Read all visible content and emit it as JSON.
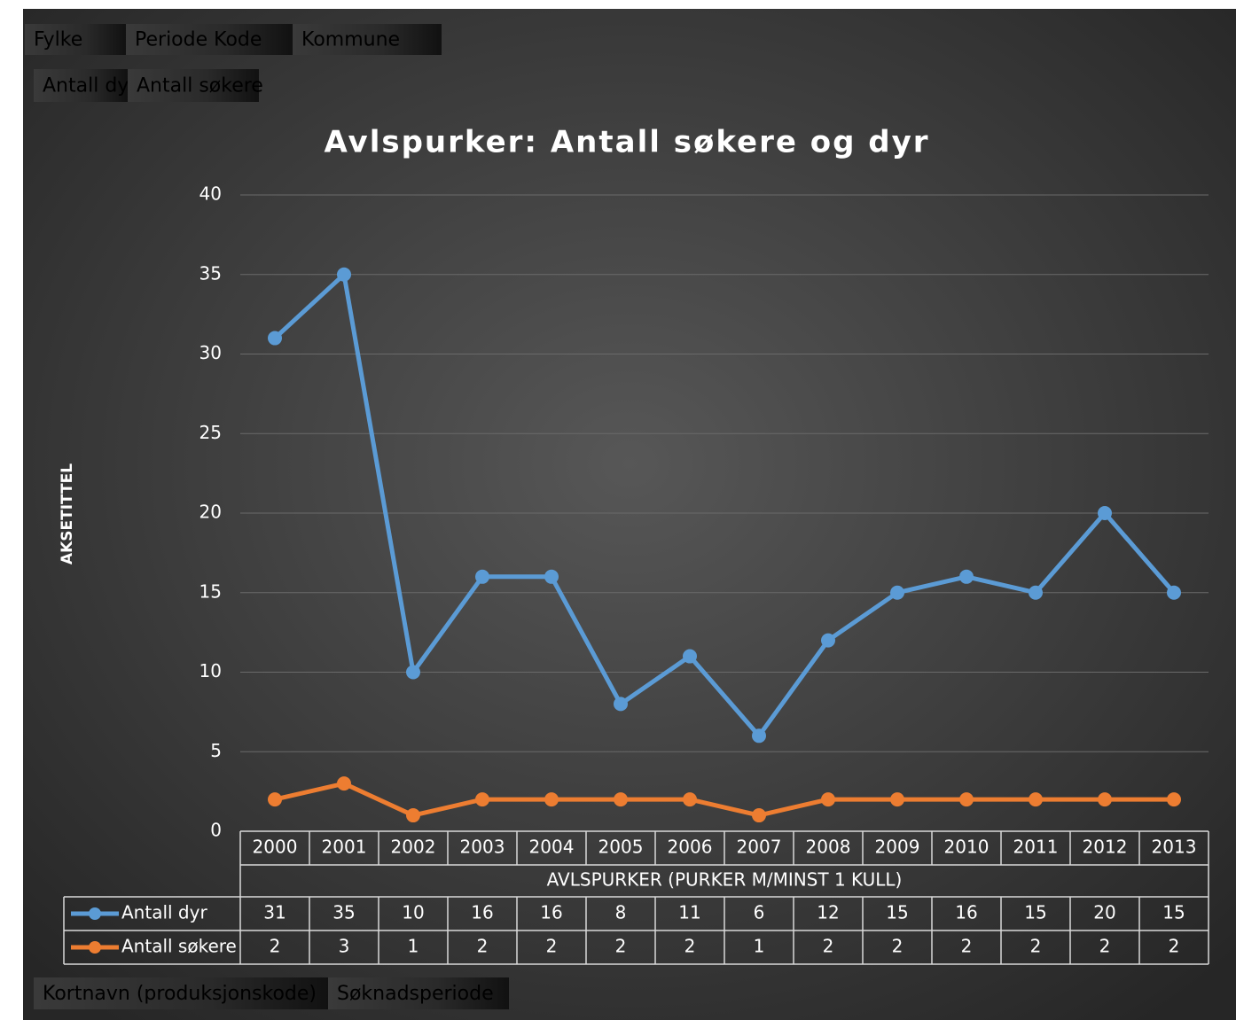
{
  "chart_data": {
    "type": "line",
    "title": "Avlspurker: Antall søkere og dyr",
    "filter_fields": [
      "Fylke",
      "Periode Kode",
      "Kommune"
    ],
    "value_fields": [
      "Antall dyr",
      "Antall søkere"
    ],
    "axis_fields": [
      "Kortnavn (produksjonskode)",
      "Søknadsperiode"
    ],
    "y_label": "AKSETITTEL",
    "x_label": "AVLSPURKER (PURKER M/MINST 1 KULL)",
    "categories": [
      "2000",
      "2001",
      "2002",
      "2003",
      "2004",
      "2005",
      "2006",
      "2007",
      "2008",
      "2009",
      "2010",
      "2011",
      "2012",
      "2013"
    ],
    "series": [
      {
        "name": "Antall dyr",
        "color": "#5b9bd5",
        "values": [
          31,
          35,
          10,
          16,
          16,
          8,
          11,
          6,
          12,
          15,
          16,
          15,
          20,
          15
        ]
      },
      {
        "name": "Antall søkere",
        "color": "#ed7d31",
        "values": [
          2,
          3,
          1,
          2,
          2,
          2,
          2,
          1,
          2,
          2,
          2,
          2,
          2,
          2
        ]
      }
    ],
    "ylim": [
      0,
      40
    ],
    "yticks": [
      0,
      5,
      10,
      15,
      20,
      25,
      30,
      35,
      40
    ],
    "grid": true,
    "data_table": true
  }
}
